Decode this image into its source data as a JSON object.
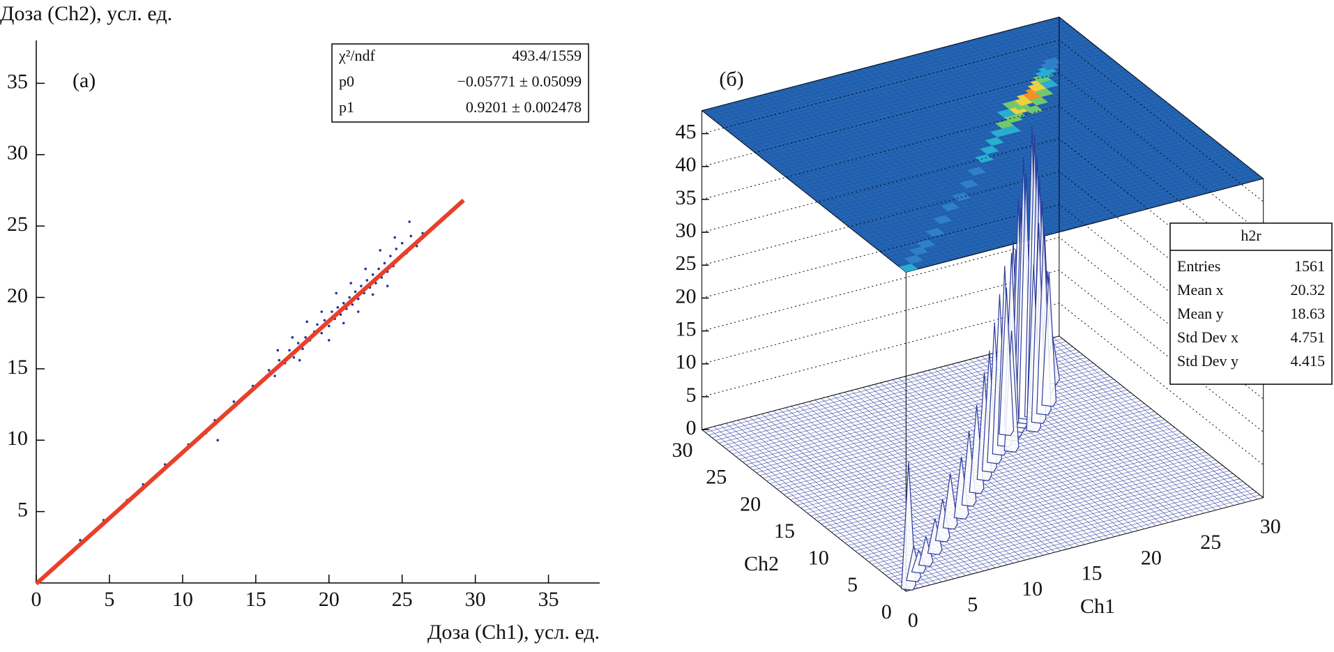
{
  "chart_data": [
    {
      "type": "scatter",
      "label": "(а)",
      "x_label": "Доза (Ch1), усл. ед.",
      "y_label": "Доза (Ch2), усл. ед.",
      "xlim": [
        0,
        38.5
      ],
      "ylim": [
        0,
        38
      ],
      "xticks": [
        0,
        5,
        10,
        15,
        20,
        25,
        30,
        35
      ],
      "yticks": [
        5,
        10,
        15,
        20,
        25,
        30,
        35
      ],
      "color": "#26349a",
      "x": [
        3,
        3.5,
        4.6,
        6.2,
        7.3,
        8.1,
        8.8,
        9.5,
        10.4,
        11.6,
        12.2,
        12.4,
        13.5,
        14.2,
        14.8,
        15.2,
        15.9,
        16.3,
        16.6,
        17.0,
        17.3,
        17.6,
        17.9,
        18.2,
        18.4,
        18.7,
        19.0,
        19.2,
        19.5,
        19.7,
        20.0,
        20.2,
        20.4,
        20.6,
        20.8,
        21.0,
        21.2,
        21.4,
        21.6,
        21.8,
        22.0,
        22.2,
        22.4,
        22.6,
        22.8,
        23.0,
        23.2,
        23.4,
        23.6,
        23.8,
        24.0,
        24.2,
        24.4,
        24.6,
        24.8,
        25.0,
        25.3,
        25.6,
        26.0,
        26.4,
        25.5,
        24.5,
        23.5,
        22.5,
        21.5,
        20.5,
        19.5,
        18.5,
        17.5,
        16.5,
        21.0,
        22.0,
        23.0,
        24.0,
        20.0,
        18.0
      ],
      "y": [
        3.0,
        3.1,
        4.4,
        5.8,
        6.9,
        7.4,
        8.3,
        8.6,
        9.7,
        10.5,
        11.4,
        10.0,
        12.7,
        13.1,
        13.8,
        14.0,
        14.9,
        14.5,
        15.6,
        15.4,
        16.3,
        15.8,
        16.8,
        16.4,
        17.2,
        17.0,
        17.6,
        18.1,
        17.5,
        18.4,
        18.0,
        19.0,
        18.5,
        19.3,
        18.8,
        19.6,
        19.2,
        20.0,
        19.5,
        20.4,
        19.9,
        20.8,
        20.3,
        21.2,
        20.7,
        21.6,
        21.0,
        22.0,
        21.4,
        22.4,
        21.8,
        22.9,
        22.2,
        23.4,
        22.7,
        23.8,
        23.1,
        24.3,
        23.6,
        24.5,
        25.3,
        24.2,
        23.3,
        22.0,
        21.0,
        20.3,
        19.0,
        18.3,
        17.2,
        16.3,
        18.2,
        19.0,
        20.2,
        20.8,
        17.0,
        15.6
      ],
      "fit": {
        "color": "#e8402a",
        "x": [
          0,
          29.2
        ],
        "y": [
          -0.05771,
          26.81
        ]
      },
      "stats": [
        [
          "χ²/ndf",
          "493.4/1559"
        ],
        [
          "p0",
          "−0.05771 ± 0.05099"
        ],
        [
          "p1",
          "0.9201 ± 0.002478"
        ]
      ]
    },
    {
      "type": "lego3d",
      "label": "(б)",
      "x_label": "Ch1",
      "y_label": "Ch2",
      "xlim": [
        0,
        30
      ],
      "ylim": [
        0,
        30
      ],
      "zlim": [
        0,
        48.5
      ],
      "xticks": [
        0,
        5,
        10,
        15,
        20,
        25,
        30
      ],
      "yticks": [
        0,
        5,
        10,
        15,
        20,
        25,
        30
      ],
      "zticks": [
        0,
        5,
        10,
        15,
        20,
        25,
        30,
        35,
        40,
        45
      ],
      "color": "#2a3a9a",
      "cells": {
        "x": [
          0.5,
          1.5,
          2.5,
          3.5,
          5,
          6.5,
          8,
          9.5,
          11,
          12.5,
          14,
          15,
          16,
          17,
          18,
          19,
          19.5,
          20,
          20.5,
          21,
          21.5,
          22,
          22.5,
          23,
          23.5,
          24,
          24.5,
          25,
          25.5,
          26,
          21,
          22,
          23,
          20,
          24,
          18,
          19
        ],
        "y": [
          0.5,
          1.5,
          2.5,
          3.2,
          4.5,
          6,
          7.5,
          8.5,
          10,
          11.5,
          13,
          14,
          15,
          16,
          17,
          17.5,
          18,
          18.5,
          19,
          19.5,
          20,
          20,
          20.5,
          21,
          21.5,
          22,
          22.5,
          23,
          23.5,
          24,
          18,
          19,
          20,
          19.5,
          21,
          16,
          18.5
        ],
        "counts": [
          19,
          5,
          3,
          4,
          5,
          6,
          8,
          9,
          11,
          13,
          16,
          18,
          21,
          24,
          27,
          30,
          28,
          35,
          33,
          40,
          37,
          44,
          42,
          38,
          34,
          30,
          24,
          18,
          12,
          7,
          25,
          30,
          28,
          26,
          20,
          18,
          22
        ]
      },
      "stats_title": "h2r",
      "stats": [
        [
          "Entries",
          "1561"
        ],
        [
          "Mean x",
          "20.32"
        ],
        [
          "Mean y",
          "18.63"
        ],
        [
          "Std Dev x",
          "4.751"
        ],
        [
          "Std Dev y",
          "4.415"
        ]
      ]
    }
  ]
}
